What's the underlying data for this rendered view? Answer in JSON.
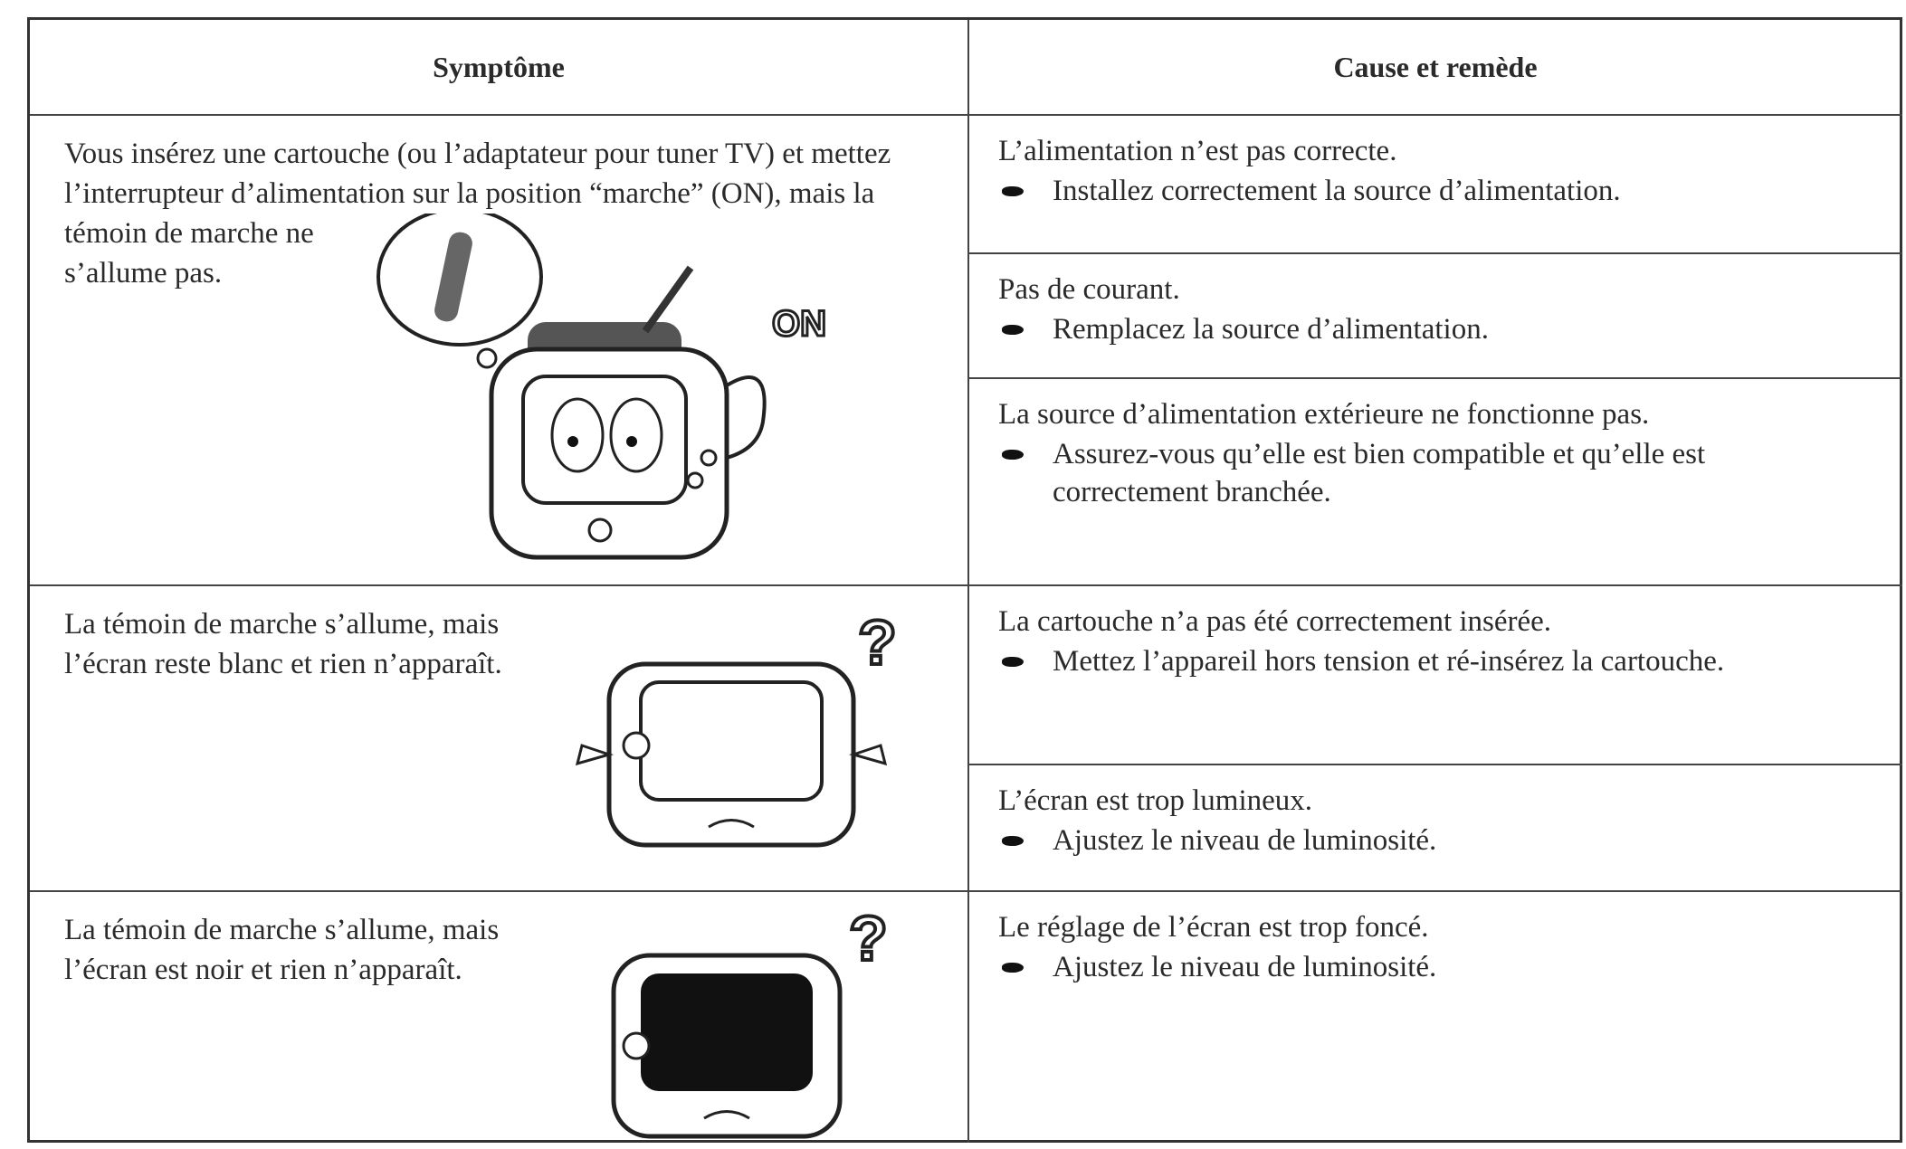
{
  "header": {
    "symptom": "Symptôme",
    "cause": "Cause et remède"
  },
  "rows": [
    {
      "symptom": "Vous insérez une cartouche (ou l’adaptateur pour tuner TV) et mettez l’interrupteur d’alimentation sur la position “marche” (ON), mais la témoin de marche ne s’allume pas.",
      "causes": [
        {
          "cause": "L’alimentation n’est pas correcte.",
          "remedy": "Installez correctement la source d’alimentation."
        },
        {
          "cause": "Pas de courant.",
          "remedy": "Remplacez la source d’alimentation."
        },
        {
          "cause": "La source d’alimentation extérieure ne fonctionne pas.",
          "remedy": "Assurez-vous qu’elle est bien compatible et qu’elle est correctement branchée."
        }
      ]
    },
    {
      "symptom": "La témoin de marche s’allume, mais l’écran reste blanc et rien n’apparaît.",
      "causes": [
        {
          "cause": "La cartouche n’a pas été correctement insérée.",
          "remedy": "Mettez l’appareil hors tension et ré-insérez la cartouche."
        },
        {
          "cause": "L’écran est trop lumineux.",
          "remedy": "Ajustez le niveau de luminosité."
        }
      ]
    },
    {
      "symptom": "La témoin de marche s’allume, mais l’écran est noir et rien n’apparaît.",
      "causes": [
        {
          "cause": "Le réglage de l’écran est trop foncé.",
          "remedy": "Ajustez le niveau de luminosité."
        }
      ]
    }
  ]
}
